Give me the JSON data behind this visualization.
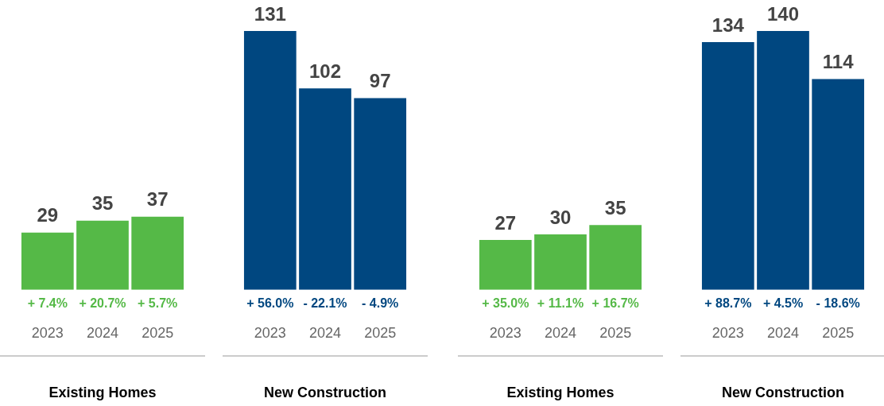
{
  "chart_data": [
    {
      "type": "bar",
      "xlabel": "Existing Homes",
      "categories": [
        "2023",
        "2024",
        "2025"
      ],
      "values": [
        29,
        35,
        37
      ],
      "color": "#55b947",
      "data_labels": true,
      "tick_labels": "x",
      "grid": false,
      "legend": false,
      "annotations": [
        "+ 7.4%",
        "+ 20.7%",
        "+ 5.7%"
      ]
    },
    {
      "type": "bar",
      "xlabel": "New Construction",
      "categories": [
        "2023",
        "2024",
        "2025"
      ],
      "values": [
        131,
        102,
        97
      ],
      "color": "#004780",
      "data_labels": true,
      "tick_labels": "x",
      "grid": false,
      "legend": false,
      "annotations": [
        "+ 56.0%",
        "- 22.1%",
        "- 4.9%"
      ]
    },
    {
      "type": "bar",
      "xlabel": "Existing Homes",
      "categories": [
        "2023",
        "2024",
        "2025"
      ],
      "values": [
        27,
        30,
        35
      ],
      "color": "#55b947",
      "data_labels": true,
      "tick_labels": "x",
      "grid": false,
      "legend": false,
      "annotations": [
        "+ 35.0%",
        "+ 11.1%",
        "+ 16.7%"
      ]
    },
    {
      "type": "bar",
      "xlabel": "New Construction",
      "categories": [
        "2023",
        "2024",
        "2025"
      ],
      "values": [
        134,
        140,
        114
      ],
      "color": "#004780",
      "data_labels": true,
      "tick_labels": "x",
      "grid": false,
      "legend": false,
      "annotations": [
        "+ 88.7%",
        "+ 4.5%",
        "- 18.6%"
      ]
    }
  ]
}
